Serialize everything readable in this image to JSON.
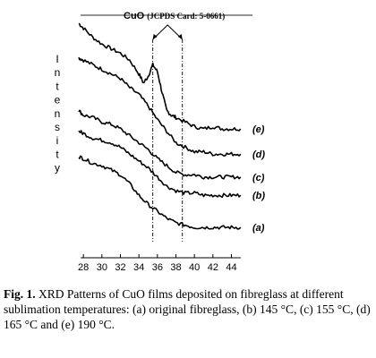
{
  "chart_data": {
    "type": "line",
    "xlabel": "",
    "ylabel": "Intensity",
    "xlim": [
      27.5,
      45.5
    ],
    "x_ticks": [
      28,
      30,
      32,
      34,
      36,
      38,
      40,
      42,
      44
    ],
    "grid": false,
    "reference": {
      "label_main": "CuO",
      "label_sub": "(JCPDS Card: 5-0661)",
      "peaks": [
        35.5,
        38.7
      ]
    },
    "series": [
      {
        "name": "(e)",
        "x": [
          27.5,
          28,
          29,
          30,
          31,
          32,
          33,
          34,
          34.5,
          35,
          35.5,
          36,
          36.5,
          37,
          37.5,
          38,
          39,
          40,
          41,
          42,
          43,
          44,
          45
        ],
        "values": [
          96,
          94,
          90,
          87,
          85,
          83,
          80,
          74,
          70,
          73,
          78,
          75,
          66,
          58,
          56,
          55,
          53,
          51,
          50,
          51,
          50,
          50,
          50
        ]
      },
      {
        "name": "(d)",
        "x": [
          27.5,
          28,
          29,
          30,
          31,
          32,
          33,
          34,
          35,
          36,
          37,
          38,
          39,
          40,
          41,
          42,
          43,
          44,
          45
        ],
        "values": [
          81,
          80,
          78,
          76,
          74,
          72,
          68,
          65,
          60,
          54,
          49,
          44,
          42,
          40,
          40,
          39,
          39,
          39,
          39
        ]
      },
      {
        "name": "(c)",
        "x": [
          27.5,
          28,
          29,
          30,
          31,
          32,
          33,
          34,
          35,
          36,
          37,
          38,
          39,
          40,
          41,
          42,
          43,
          44,
          45
        ],
        "values": [
          58,
          56,
          55,
          53,
          52,
          50,
          47,
          44,
          41,
          37,
          34,
          31,
          30,
          30,
          29,
          29,
          29,
          29,
          29
        ]
      },
      {
        "name": "(b)",
        "x": [
          27.5,
          28,
          29,
          30,
          31,
          32,
          33,
          34,
          35,
          36,
          37,
          38,
          39,
          40,
          41,
          42,
          43,
          44,
          45
        ],
        "values": [
          49,
          48,
          46,
          45,
          44,
          42,
          39,
          36,
          33,
          29,
          25,
          23,
          22,
          22,
          21,
          21,
          21,
          21,
          21
        ]
      },
      {
        "name": "(a)",
        "x": [
          27.5,
          28,
          29,
          30,
          31,
          32,
          33,
          34,
          35,
          36,
          37,
          38,
          39,
          40,
          41,
          42,
          43,
          44,
          45
        ],
        "values": [
          38,
          37,
          35,
          34,
          32,
          30,
          26,
          21,
          17,
          14,
          11,
          9,
          8,
          7,
          7,
          7,
          7,
          7,
          7
        ]
      }
    ],
    "y_axis_letters": [
      "I",
      "n",
      "t",
      "e",
      "n",
      "s",
      "i",
      "t",
      "y"
    ]
  },
  "caption": {
    "figno": "Fig. 1.",
    "text": " XRD Patterns of CuO films deposited on fibreglass at different sublimation temperatures: (a) original fibreglass, (b) 145 °C, (c) 155 °C, (d) 165 °C and (e) 190 °C."
  }
}
